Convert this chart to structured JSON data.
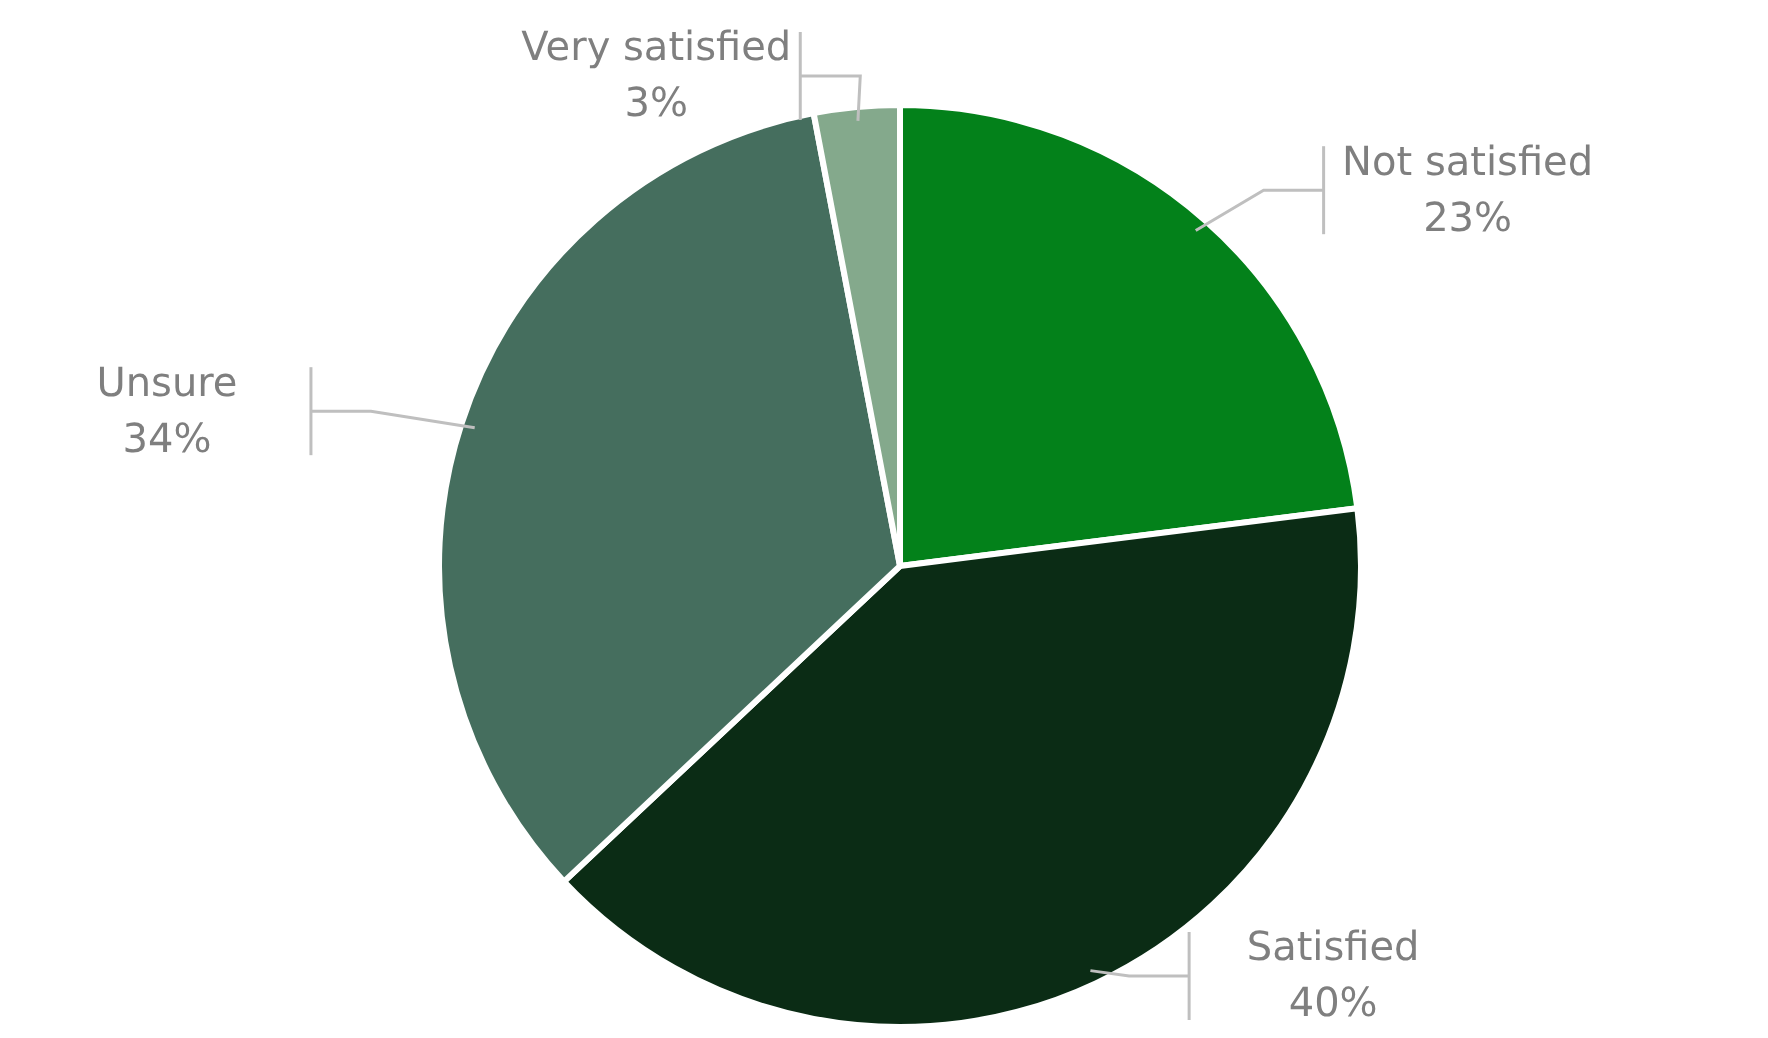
{
  "chart_data": {
    "type": "pie",
    "categories": [
      "Not satisfied",
      "Satisfied",
      "Unsure",
      "Very satisfied"
    ],
    "values": [
      23,
      40,
      34,
      3
    ],
    "colors": [
      "#03811a",
      "#0b2c15",
      "#456e5e",
      "#84a98c"
    ],
    "value_labels": [
      "23%",
      "40%",
      "34%",
      "3%"
    ],
    "legend": false
  }
}
